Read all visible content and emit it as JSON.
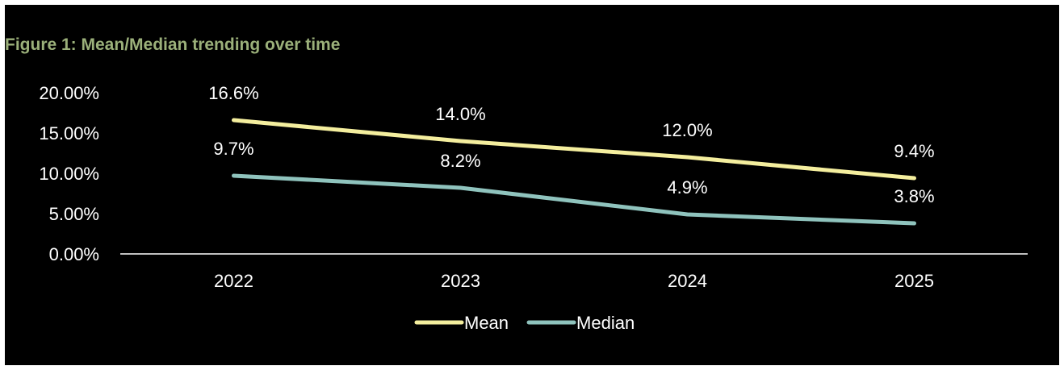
{
  "chart_data": {
    "type": "line",
    "title": "Figure 1: Mean/Median trending over time",
    "xlabel": "",
    "ylabel": "",
    "categories": [
      "2022",
      "2023",
      "2024",
      "2025"
    ],
    "ylim": [
      0,
      20
    ],
    "y_ticks": [
      "0.00%",
      "5.00%",
      "10.00%",
      "15.00%",
      "20.00%"
    ],
    "grid": false,
    "legend_position": "bottom",
    "series": [
      {
        "name": "Mean",
        "color": "#f4ee9e",
        "values": [
          16.6,
          14.0,
          12.0,
          9.4
        ],
        "labels": [
          "16.6%",
          "14.0%",
          "12.0%",
          "9.4%"
        ]
      },
      {
        "name": "Median",
        "color": "#8fc3bd",
        "values": [
          9.7,
          8.2,
          4.9,
          3.8
        ],
        "labels": [
          "9.7%",
          "8.2%",
          "4.9%",
          "3.8%"
        ]
      }
    ]
  },
  "colors": {
    "background": "#000000",
    "title": "#9bb07a",
    "text": "#ffffff",
    "axis": "#ffffff"
  }
}
